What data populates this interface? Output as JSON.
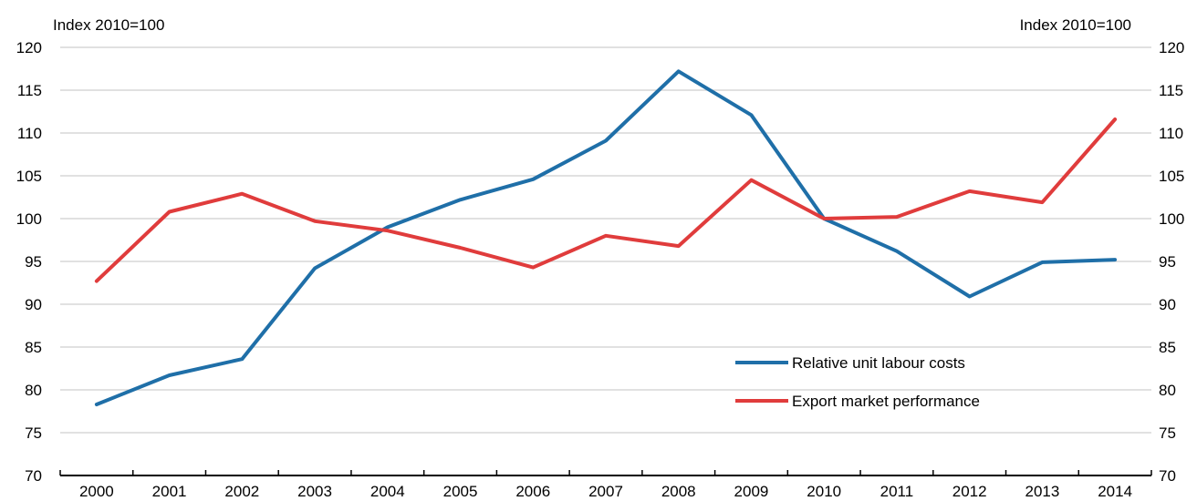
{
  "chart_data": {
    "type": "line",
    "left_axis_label": "Index 2010=100",
    "right_axis_label": "Index 2010=100",
    "categories": [
      "2000",
      "2001",
      "2002",
      "2003",
      "2004",
      "2005",
      "2006",
      "2007",
      "2008",
      "2009",
      "2010",
      "2011",
      "2012",
      "2013",
      "2014"
    ],
    "y_ticks": [
      "70",
      "75",
      "80",
      "85",
      "90",
      "95",
      "100",
      "105",
      "110",
      "115",
      "120"
    ],
    "ylim": [
      70,
      120
    ],
    "grid": true,
    "legend_position": "lower-right",
    "series": [
      {
        "name": "Relative unit labour costs",
        "color": "#1f6fa8",
        "values": [
          78.3,
          81.7,
          83.6,
          94.2,
          99.0,
          102.2,
          104.6,
          109.1,
          117.2,
          112.1,
          100.0,
          96.2,
          90.9,
          94.9,
          95.2
        ]
      },
      {
        "name": "Export market performance",
        "color": "#e03c3c",
        "values": [
          92.7,
          100.8,
          102.9,
          99.7,
          98.6,
          96.6,
          94.3,
          98.0,
          96.8,
          104.5,
          100.0,
          100.2,
          103.2,
          101.9,
          111.6
        ]
      }
    ]
  }
}
